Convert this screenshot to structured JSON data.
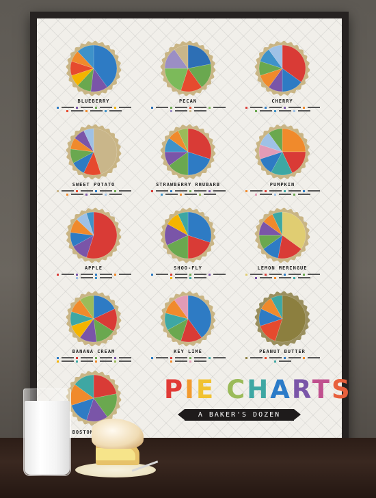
{
  "poster": {
    "title_letters": [
      "P",
      "I",
      "E",
      " ",
      "C",
      "H",
      "A",
      "R",
      "T",
      "S"
    ],
    "title_colors": [
      "#e13a36",
      "#f29a2e",
      "#f1c232",
      "#ffffff",
      "#9bbb59",
      "#3ea7a3",
      "#2b7bc8",
      "#7a55a8",
      "#c0508e",
      "#e8603c"
    ],
    "subtitle": "A BAKER'S DOZEN"
  },
  "chart_data": [
    {
      "type": "pie",
      "title": "BLUEBERRY",
      "slices": [
        {
          "label": "",
          "value": 40,
          "color": "#2e7bc4"
        },
        {
          "label": "",
          "value": 12,
          "color": "#7a55a8"
        },
        {
          "label": "",
          "value": 10,
          "color": "#6aa84f"
        },
        {
          "label": "",
          "value": 8,
          "color": "#f4b400"
        },
        {
          "label": "",
          "value": 10,
          "color": "#e64a2e"
        },
        {
          "label": "",
          "value": 8,
          "color": "#f08a2c"
        },
        {
          "label": "",
          "value": 12,
          "color": "#3e92c9"
        }
      ]
    },
    {
      "type": "pie",
      "title": "PECAN",
      "slices": [
        {
          "label": "",
          "value": 22,
          "color": "#2d6fb5"
        },
        {
          "label": "",
          "value": 18,
          "color": "#6aa84f"
        },
        {
          "label": "",
          "value": 15,
          "color": "#e64a2e"
        },
        {
          "label": "",
          "value": 20,
          "color": "#7cba5a"
        },
        {
          "label": "",
          "value": 15,
          "color": "#9b8ec4"
        },
        {
          "label": "",
          "value": 10,
          "color": "#c9b68a"
        }
      ]
    },
    {
      "type": "pie",
      "title": "CHERRY",
      "slices": [
        {
          "label": "",
          "value": 35,
          "color": "#d93b36"
        },
        {
          "label": "",
          "value": 15,
          "color": "#2e7bc4"
        },
        {
          "label": "",
          "value": 10,
          "color": "#7a55a8"
        },
        {
          "label": "",
          "value": 10,
          "color": "#f08a2c"
        },
        {
          "label": "",
          "value": 10,
          "color": "#6aa84f"
        },
        {
          "label": "",
          "value": 10,
          "color": "#3e92c9"
        },
        {
          "label": "",
          "value": 10,
          "color": "#9ec1e6"
        }
      ]
    },
    {
      "type": "pie",
      "title": "SWEET POTATO",
      "slices": [
        {
          "label": "",
          "value": 45,
          "color": "#c9b68a"
        },
        {
          "label": "",
          "value": 12,
          "color": "#e64a2e"
        },
        {
          "label": "",
          "value": 10,
          "color": "#2e7bc4"
        },
        {
          "label": "",
          "value": 10,
          "color": "#6aa84f"
        },
        {
          "label": "",
          "value": 8,
          "color": "#f08a2c"
        },
        {
          "label": "",
          "value": 8,
          "color": "#7a55a8"
        },
        {
          "label": "",
          "value": 7,
          "color": "#9ec1e6"
        }
      ]
    },
    {
      "type": "pie",
      "title": "STRAWBERRY RHUBARB",
      "slices": [
        {
          "label": "",
          "value": 30,
          "color": "#d93b36"
        },
        {
          "label": "",
          "value": 20,
          "color": "#2e7bc4"
        },
        {
          "label": "",
          "value": 15,
          "color": "#6aa84f"
        },
        {
          "label": "",
          "value": 10,
          "color": "#7a55a8"
        },
        {
          "label": "",
          "value": 10,
          "color": "#3e92c9"
        },
        {
          "label": "",
          "value": 8,
          "color": "#f08a2c"
        },
        {
          "label": "",
          "value": 7,
          "color": "#9bbb59"
        }
      ]
    },
    {
      "type": "pie",
      "title": "PUMPKIN",
      "slices": [
        {
          "label": "",
          "value": 25,
          "color": "#f08a2c"
        },
        {
          "label": "",
          "value": 18,
          "color": "#d93b36"
        },
        {
          "label": "",
          "value": 15,
          "color": "#3ea7a3"
        },
        {
          "label": "",
          "value": 12,
          "color": "#2e7bc4"
        },
        {
          "label": "",
          "value": 10,
          "color": "#e29bb6"
        },
        {
          "label": "",
          "value": 10,
          "color": "#9ec1e6"
        },
        {
          "label": "",
          "value": 10,
          "color": "#6aa84f"
        }
      ]
    },
    {
      "type": "pie",
      "title": "APPLE",
      "slices": [
        {
          "label": "",
          "value": 55,
          "color": "#d93b36"
        },
        {
          "label": "",
          "value": 12,
          "color": "#7a55a8"
        },
        {
          "label": "",
          "value": 10,
          "color": "#2e7bc4"
        },
        {
          "label": "",
          "value": 10,
          "color": "#f08a2c"
        },
        {
          "label": "",
          "value": 8,
          "color": "#9ec1e6"
        },
        {
          "label": "",
          "value": 5,
          "color": "#3e92c9"
        }
      ]
    },
    {
      "type": "pie",
      "title": "SHOO-FLY",
      "slices": [
        {
          "label": "",
          "value": 30,
          "color": "#2e7bc4"
        },
        {
          "label": "",
          "value": 20,
          "color": "#d93b36"
        },
        {
          "label": "",
          "value": 18,
          "color": "#6aa84f"
        },
        {
          "label": "",
          "value": 15,
          "color": "#7a55a8"
        },
        {
          "label": "",
          "value": 10,
          "color": "#f4b400"
        },
        {
          "label": "",
          "value": 7,
          "color": "#3ea7a3"
        }
      ]
    },
    {
      "type": "pie",
      "title": "LEMON MERINGUE",
      "slices": [
        {
          "label": "",
          "value": 35,
          "color": "#e0cd72"
        },
        {
          "label": "",
          "value": 18,
          "color": "#d93b36"
        },
        {
          "label": "",
          "value": 12,
          "color": "#2e7bc4"
        },
        {
          "label": "",
          "value": 10,
          "color": "#6aa84f"
        },
        {
          "label": "",
          "value": 10,
          "color": "#7a55a8"
        },
        {
          "label": "",
          "value": 8,
          "color": "#f08a2c"
        },
        {
          "label": "",
          "value": 7,
          "color": "#3ea7a3"
        }
      ]
    },
    {
      "type": "pie",
      "title": "BANANA CREAM",
      "slices": [
        {
          "label": "",
          "value": 18,
          "color": "#2e7bc4"
        },
        {
          "label": "",
          "value": 16,
          "color": "#d93b36"
        },
        {
          "label": "",
          "value": 14,
          "color": "#6aa84f"
        },
        {
          "label": "",
          "value": 12,
          "color": "#7a55a8"
        },
        {
          "label": "",
          "value": 10,
          "color": "#f4b400"
        },
        {
          "label": "",
          "value": 10,
          "color": "#3ea7a3"
        },
        {
          "label": "",
          "value": 10,
          "color": "#f08a2c"
        },
        {
          "label": "",
          "value": 10,
          "color": "#9bbb59"
        }
      ]
    },
    {
      "type": "pie",
      "title": "KEY LIME",
      "slices": [
        {
          "label": "",
          "value": 40,
          "color": "#2e7bc4"
        },
        {
          "label": "",
          "value": 15,
          "color": "#d93b36"
        },
        {
          "label": "",
          "value": 12,
          "color": "#6aa84f"
        },
        {
          "label": "",
          "value": 12,
          "color": "#3ea7a3"
        },
        {
          "label": "",
          "value": 11,
          "color": "#f08a2c"
        },
        {
          "label": "",
          "value": 10,
          "color": "#e29bb6"
        }
      ]
    },
    {
      "type": "pie",
      "title": "PEANUT BUTTER",
      "slices": [
        {
          "label": "",
          "value": 55,
          "color": "#8c7f3f"
        },
        {
          "label": "",
          "value": 15,
          "color": "#e64a2e"
        },
        {
          "label": "",
          "value": 12,
          "color": "#2e7bc4"
        },
        {
          "label": "",
          "value": 10,
          "color": "#f08a2c"
        },
        {
          "label": "",
          "value": 8,
          "color": "#3ea7a3"
        }
      ]
    },
    {
      "type": "pie",
      "title": "BOSTON CREAM",
      "slices": [
        {
          "label": "",
          "value": 22,
          "color": "#d93b36"
        },
        {
          "label": "",
          "value": 18,
          "color": "#6aa84f"
        },
        {
          "label": "",
          "value": 15,
          "color": "#7a55a8"
        },
        {
          "label": "",
          "value": 15,
          "color": "#2e7bc4"
        },
        {
          "label": "",
          "value": 15,
          "color": "#f08a2c"
        },
        {
          "label": "",
          "value": 15,
          "color": "#3ea7a3"
        }
      ]
    }
  ]
}
